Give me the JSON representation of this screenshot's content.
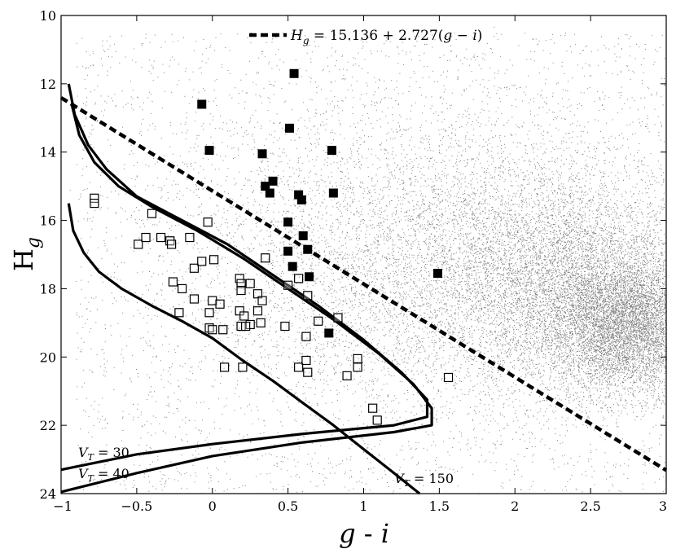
{
  "chart_data": {
    "type": "scatter",
    "title": "",
    "xlabel_main": "g - ",
    "xlabel_italic": "i",
    "ylabel_main": "H",
    "ylabel_sub": "g",
    "xlim": [
      -1,
      3
    ],
    "ylim": [
      24,
      10
    ],
    "y_inverted": true,
    "grid": false,
    "x_ticks": [
      -1,
      -0.5,
      0,
      0.5,
      1,
      1.5,
      2,
      2.5,
      3
    ],
    "x_tick_labels": [
      "−1",
      "−0.5",
      "0",
      "0.5",
      "1",
      "1.5",
      "2",
      "2.5",
      "3"
    ],
    "y_ticks": [
      10,
      12,
      14,
      16,
      18,
      20,
      22,
      24
    ],
    "y_tick_labels": [
      "10",
      "12",
      "14",
      "16",
      "18",
      "20",
      "22",
      "24"
    ],
    "legend": {
      "placement": "top-center",
      "entries": [
        {
          "name": "H_g = 15.136 + 2.727(g − i)",
          "style": "dashed"
        }
      ]
    },
    "series": [
      {
        "kind": "line",
        "style": "dashed",
        "equation": "Hg = 15.136 + 2.727(g-i)",
        "intercept": 15.136,
        "slope": 2.727
      },
      {
        "kind": "filled-squares",
        "points": [
          [
            -0.07,
            12.6
          ],
          [
            -0.02,
            13.95
          ],
          [
            0.33,
            14.05
          ],
          [
            0.51,
            13.3
          ],
          [
            0.54,
            11.7
          ],
          [
            0.79,
            13.95
          ],
          [
            0.8,
            15.2
          ],
          [
            0.35,
            15.0
          ],
          [
            0.4,
            14.85
          ],
          [
            0.38,
            15.2
          ],
          [
            0.57,
            15.25
          ],
          [
            0.59,
            15.4
          ],
          [
            0.5,
            16.05
          ],
          [
            0.6,
            16.45
          ],
          [
            0.63,
            16.85
          ],
          [
            0.5,
            16.9
          ],
          [
            0.53,
            17.35
          ],
          [
            0.64,
            17.65
          ],
          [
            0.77,
            19.3
          ],
          [
            1.49,
            17.55
          ]
        ]
      },
      {
        "kind": "open-squares",
        "points": [
          [
            -0.78,
            15.35
          ],
          [
            -0.78,
            15.5
          ],
          [
            -0.4,
            15.8
          ],
          [
            -0.03,
            16.05
          ],
          [
            -0.49,
            16.7
          ],
          [
            -0.44,
            16.5
          ],
          [
            -0.34,
            16.5
          ],
          [
            -0.28,
            16.6
          ],
          [
            -0.27,
            16.7
          ],
          [
            -0.15,
            16.5
          ],
          [
            -0.12,
            17.4
          ],
          [
            -0.07,
            17.2
          ],
          [
            0.01,
            17.15
          ],
          [
            0.35,
            17.1
          ],
          [
            -0.26,
            17.8
          ],
          [
            -0.2,
            18.0
          ],
          [
            -0.12,
            18.3
          ],
          [
            0.0,
            18.35
          ],
          [
            0.05,
            18.45
          ],
          [
            0.18,
            17.7
          ],
          [
            0.19,
            17.85
          ],
          [
            0.19,
            18.05
          ],
          [
            0.25,
            17.85
          ],
          [
            0.3,
            18.15
          ],
          [
            0.33,
            18.35
          ],
          [
            0.5,
            17.9
          ],
          [
            0.57,
            17.7
          ],
          [
            0.63,
            18.2
          ],
          [
            -0.22,
            18.7
          ],
          [
            -0.02,
            18.7
          ],
          [
            -0.02,
            19.15
          ],
          [
            0.0,
            19.2
          ],
          [
            0.07,
            19.2
          ],
          [
            0.18,
            18.65
          ],
          [
            0.21,
            18.8
          ],
          [
            0.25,
            19.05
          ],
          [
            0.3,
            18.65
          ],
          [
            0.32,
            19.0
          ],
          [
            0.19,
            19.1
          ],
          [
            0.22,
            19.1
          ],
          [
            0.48,
            19.1
          ],
          [
            0.62,
            19.4
          ],
          [
            0.7,
            18.95
          ],
          [
            0.83,
            18.85
          ],
          [
            0.08,
            20.3
          ],
          [
            0.2,
            20.3
          ],
          [
            0.57,
            20.3
          ],
          [
            0.62,
            20.1
          ],
          [
            0.63,
            20.45
          ],
          [
            0.89,
            20.55
          ],
          [
            0.96,
            20.05
          ],
          [
            0.96,
            20.3
          ],
          [
            1.06,
            21.5
          ],
          [
            1.09,
            21.85
          ],
          [
            1.56,
            20.6
          ]
        ]
      },
      {
        "kind": "line",
        "name": "V_T = 30",
        "points": [
          [
            -0.95,
            12.0
          ],
          [
            -0.91,
            12.9
          ],
          [
            -0.82,
            13.8
          ],
          [
            -0.7,
            14.5
          ],
          [
            -0.5,
            15.3
          ],
          [
            -0.2,
            16.0
          ],
          [
            0.1,
            16.7
          ],
          [
            0.4,
            17.6
          ],
          [
            0.7,
            18.5
          ],
          [
            1.0,
            19.5
          ],
          [
            1.25,
            20.45
          ],
          [
            1.42,
            21.25
          ],
          [
            1.42,
            21.75
          ],
          [
            1.2,
            22.0
          ],
          [
            0.6,
            22.25
          ],
          [
            0.0,
            22.55
          ],
          [
            -0.5,
            22.85
          ],
          [
            -1.0,
            23.3
          ]
        ]
      },
      {
        "kind": "line",
        "name": "V_T = 40",
        "points": [
          [
            -0.93,
            12.6
          ],
          [
            -0.88,
            13.5
          ],
          [
            -0.78,
            14.3
          ],
          [
            -0.62,
            15.0
          ],
          [
            -0.4,
            15.6
          ],
          [
            -0.1,
            16.3
          ],
          [
            0.2,
            17.1
          ],
          [
            0.5,
            18.0
          ],
          [
            0.8,
            18.9
          ],
          [
            1.1,
            19.9
          ],
          [
            1.33,
            20.8
          ],
          [
            1.45,
            21.5
          ],
          [
            1.45,
            22.0
          ],
          [
            1.2,
            22.2
          ],
          [
            0.6,
            22.5
          ],
          [
            0.0,
            22.9
          ],
          [
            -0.5,
            23.4
          ],
          [
            -1.0,
            23.95
          ]
        ]
      },
      {
        "kind": "line",
        "name": "V_T = 150",
        "points": [
          [
            -0.95,
            15.5
          ],
          [
            -0.92,
            16.3
          ],
          [
            -0.85,
            16.95
          ],
          [
            -0.75,
            17.5
          ],
          [
            -0.6,
            18.0
          ],
          [
            -0.4,
            18.5
          ],
          [
            -0.2,
            18.95
          ],
          [
            0.0,
            19.45
          ],
          [
            0.2,
            20.1
          ],
          [
            0.4,
            20.7
          ],
          [
            0.6,
            21.35
          ],
          [
            0.8,
            22.0
          ],
          [
            1.0,
            22.7
          ],
          [
            1.2,
            23.4
          ],
          [
            1.37,
            24.0
          ]
        ]
      }
    ],
    "curve_labels": [
      {
        "text": "V_T = 30",
        "main": "V",
        "sub": "T",
        "rest": " = 30"
      },
      {
        "text": "V_T = 40",
        "main": "V",
        "sub": "T",
        "rest": " = 40"
      },
      {
        "text": "V_T = 150",
        "main": "V",
        "sub": "T",
        "rest": " = 150"
      }
    ],
    "background_density": {
      "kind": "dense-scatter",
      "color": "#555555",
      "densest_region": [
        2.75,
        19.0
      ]
    }
  }
}
